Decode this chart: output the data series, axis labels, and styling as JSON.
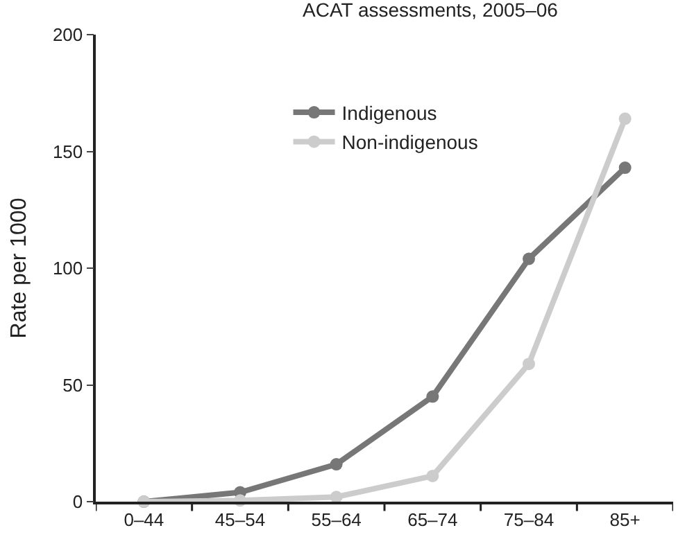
{
  "chart_data": {
    "type": "line",
    "title": "ACAT assessments, 2005–06",
    "ylabel": "Rate per 1000",
    "categories": [
      "0–44",
      "45–54",
      "55–64",
      "65–74",
      "75–84",
      "85+"
    ],
    "series": [
      {
        "name": "Indigenous",
        "color": "#777777",
        "values": [
          0,
          4,
          16,
          45,
          104,
          143
        ]
      },
      {
        "name": "Non-indigenous",
        "color": "#cccccc",
        "values": [
          0,
          0.5,
          2,
          11,
          59,
          164
        ]
      }
    ],
    "ylim": [
      0,
      200
    ],
    "yticks": [
      0,
      50,
      100,
      150,
      200
    ],
    "legend": "top",
    "marker": "circle",
    "line_style": "solid"
  }
}
